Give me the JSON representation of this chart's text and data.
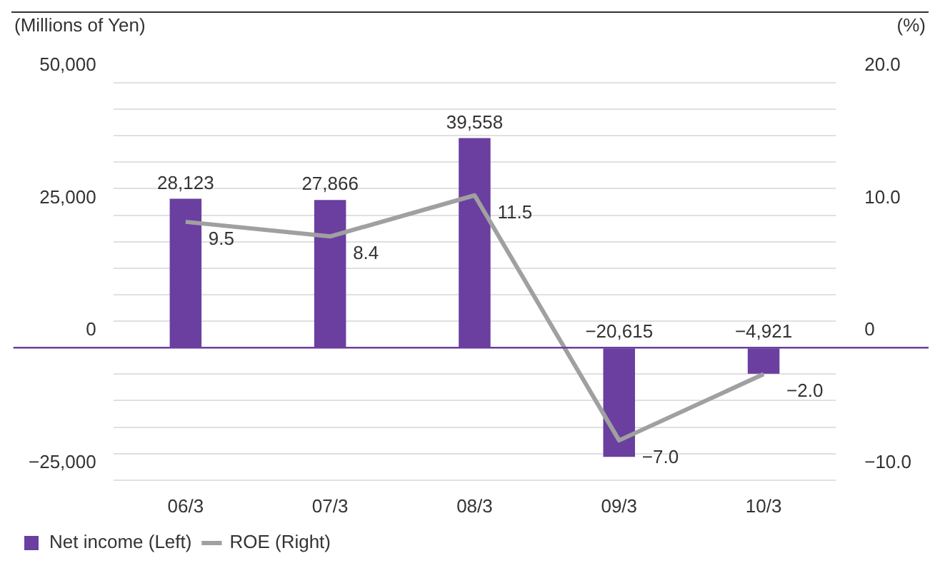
{
  "chart_data": {
    "type": "bar",
    "ylabel": "(Millions of Yen)",
    "y2label": "(%)",
    "categories": [
      "06/3",
      "07/3",
      "08/3",
      "09/3",
      "10/3"
    ],
    "series": [
      {
        "name": "Net income (Left)",
        "color": "#6a3fa0",
        "values": [
          28123,
          27866,
          39558,
          -20615,
          -4921
        ],
        "value_labels": [
          "28,123",
          "27,866",
          "39,558",
          "−20,615",
          "−4,921"
        ]
      },
      {
        "name": "ROE (Right)",
        "type": "line",
        "axis": "y2",
        "color": "#a0a0a0",
        "values": [
          9.5,
          8.4,
          11.5,
          -7.0,
          -2.0
        ],
        "value_labels": [
          "9.5",
          "8.4",
          "11.5",
          "−7.0",
          "−2.0"
        ]
      }
    ],
    "ylim": [
      -25000,
      50000
    ],
    "yticks": [
      {
        "value": -25000,
        "label": "−25,000"
      },
      {
        "value": -20000,
        "label": null
      },
      {
        "value": -15000,
        "label": null
      },
      {
        "value": -10000,
        "label": null
      },
      {
        "value": -5000,
        "label": null
      },
      {
        "value": 0,
        "label": "0"
      },
      {
        "value": 5000,
        "label": null
      },
      {
        "value": 10000,
        "label": null
      },
      {
        "value": 15000,
        "label": null
      },
      {
        "value": 20000,
        "label": null
      },
      {
        "value": 25000,
        "label": "25,000"
      },
      {
        "value": 30000,
        "label": null
      },
      {
        "value": 35000,
        "label": null
      },
      {
        "value": 40000,
        "label": null
      },
      {
        "value": 45000,
        "label": null
      },
      {
        "value": 50000,
        "label": "50,000"
      }
    ],
    "y2lim": [
      -10,
      20
    ],
    "y2ticks": [
      {
        "value": -10,
        "label": "−10.0"
      },
      {
        "value": 0,
        "label": "0"
      },
      {
        "value": 10,
        "label": "10.0"
      },
      {
        "value": 20,
        "label": "20.0"
      }
    ],
    "ref_lines": [
      {
        "axis": "y",
        "value": 0,
        "color": "#6a3fa0"
      }
    ],
    "grid": "y",
    "legend": "bottom left",
    "marker": "none",
    "line_style": "solid"
  }
}
